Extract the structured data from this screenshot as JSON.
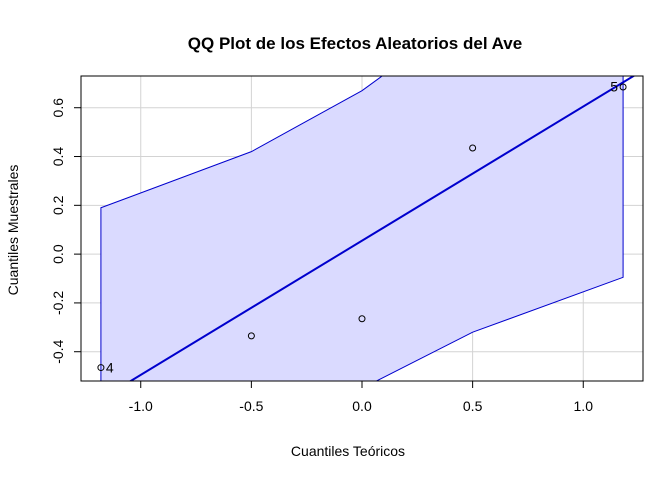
{
  "chart_data": {
    "type": "scatter",
    "title": "QQ Plot de los Efectos Aleatorios del Ave",
    "xlabel": "Cuantiles Teóricos",
    "ylabel": "Cuantiles Muestrales",
    "xlim": [
      -1.27,
      1.27
    ],
    "ylim": [
      -0.52,
      0.73
    ],
    "xticks": [
      -1.0,
      -0.5,
      0.0,
      0.5,
      1.0
    ],
    "xtick_labels": [
      "-1.0",
      "-0.5",
      "0.0",
      "0.5",
      "1.0"
    ],
    "yticks": [
      -0.4,
      -0.2,
      0.0,
      0.2,
      0.4,
      0.6
    ],
    "ytick_labels": [
      "-0.4",
      "-0.2",
      "0.0",
      "0.2",
      "0.4",
      "0.6"
    ],
    "grid": true,
    "points": [
      {
        "x": -1.18,
        "y": -0.465,
        "label": "4"
      },
      {
        "x": -0.5,
        "y": -0.335,
        "label": ""
      },
      {
        "x": 0.0,
        "y": -0.265,
        "label": ""
      },
      {
        "x": 0.5,
        "y": 0.435,
        "label": ""
      },
      {
        "x": 1.18,
        "y": 0.685,
        "label": "5"
      }
    ],
    "reference_line": {
      "intercept": 0.055,
      "slope": 0.55
    },
    "envelope": {
      "x": [
        -1.18,
        -0.5,
        0.0,
        0.5,
        1.18
      ],
      "upper": [
        0.19,
        0.42,
        0.67,
        1.0,
        1.3
      ],
      "lower": [
        -1.0,
        -0.87,
        -0.55,
        -0.32,
        -0.095
      ]
    },
    "colors": {
      "envelope_fill": "#dadaff",
      "envelope_line": "#0000cd",
      "reference_line": "#0000cd",
      "grid": "#d3d3d3",
      "points": "#000000"
    }
  }
}
